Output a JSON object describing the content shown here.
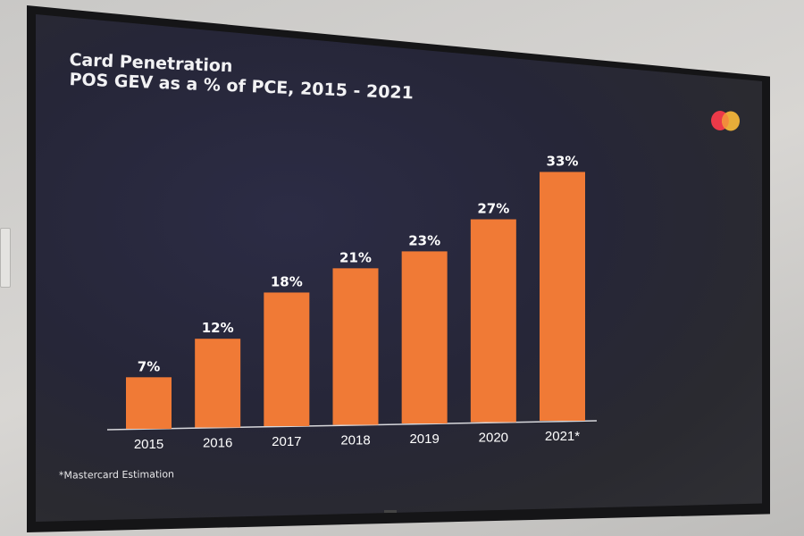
{
  "slide": {
    "title_line1": "Card Penetration",
    "title_line2": "POS GEV as a % of PCE, 2015 - 2021",
    "footnote": "*Mastercard Estimation",
    "logo": "mastercard-logo-icon",
    "colors": {
      "background": "#262638",
      "bar": "#f07a36",
      "text": "#ffffff",
      "logo_red": "#eb3a49",
      "logo_yellow": "#f7b93a"
    }
  },
  "chart_data": {
    "type": "bar",
    "title": "Card Penetration",
    "subtitle": "POS GEV as a % of PCE, 2015 - 2021",
    "categories": [
      "2015",
      "2016",
      "2017",
      "2018",
      "2019",
      "2020",
      "2021*"
    ],
    "values": [
      7,
      12,
      18,
      21,
      23,
      27,
      33
    ],
    "data_labels": [
      "7%",
      "12%",
      "18%",
      "21%",
      "23%",
      "27%",
      "33%"
    ],
    "xlabel": "",
    "ylabel": "",
    "ylim": [
      0,
      33
    ],
    "unit": "%",
    "grid": false,
    "legend": "none",
    "annotations": [
      "*Mastercard Estimation"
    ]
  }
}
